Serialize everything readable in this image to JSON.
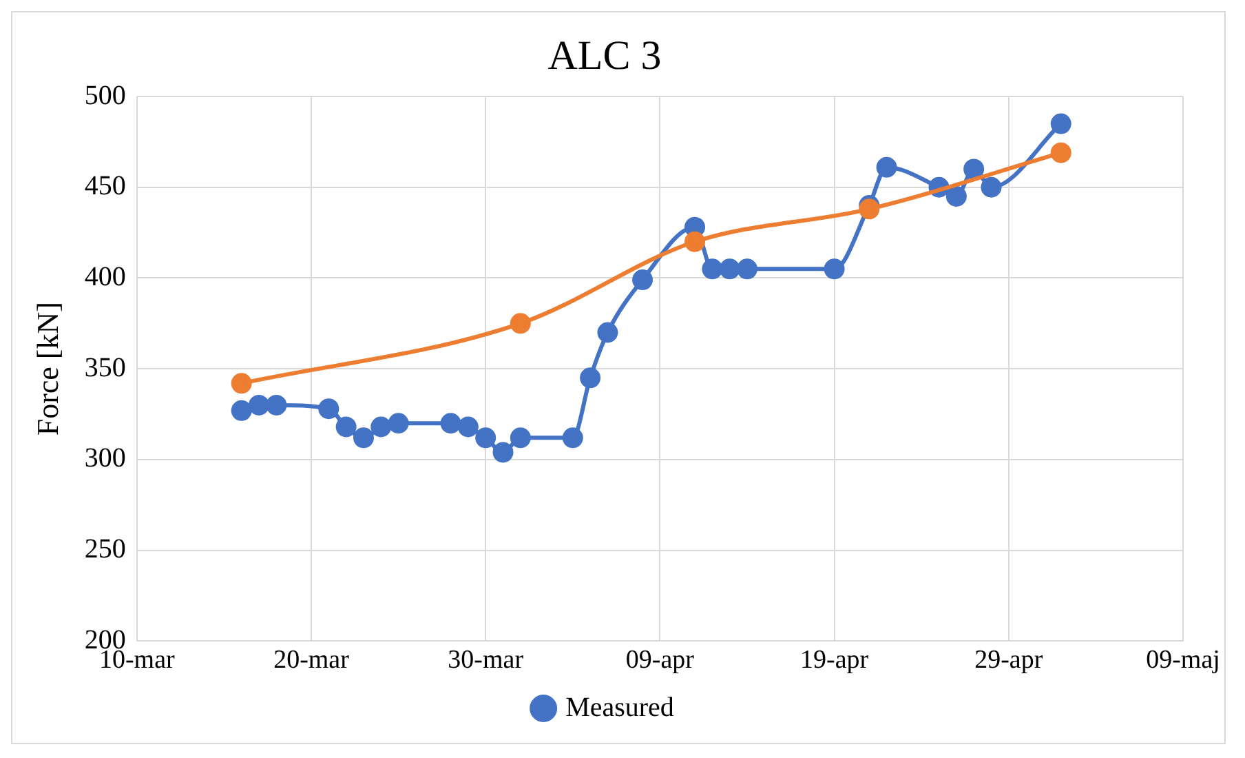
{
  "chart_data": {
    "type": "line",
    "title": "ALC 3",
    "ylabel": "Force [kN]",
    "xlim": [
      "--03-10",
      "--05-09"
    ],
    "xticks": [
      {
        "value": "--03-10",
        "label": "10-mar"
      },
      {
        "value": "--03-20",
        "label": "20-mar"
      },
      {
        "value": "--03-30",
        "label": "30-mar"
      },
      {
        "value": "--04-09",
        "label": "09-apr"
      },
      {
        "value": "--04-19",
        "label": "19-apr"
      },
      {
        "value": "--04-29",
        "label": "29-apr"
      },
      {
        "value": "--05-09",
        "label": "09-maj"
      }
    ],
    "ylim": [
      200,
      500
    ],
    "yticks": [
      200,
      250,
      300,
      350,
      400,
      450,
      500
    ],
    "grid": true,
    "legend": "bottom",
    "marker": "circle",
    "line_style": "solid",
    "series": [
      {
        "name": "Measured",
        "color": "#4472c4",
        "x": [
          "--03-16",
          "--03-17",
          "--03-18",
          "--03-21",
          "--03-22",
          "--03-23",
          "--03-24",
          "--03-25",
          "--03-28",
          "--03-29",
          "--03-30",
          "--03-31",
          "--04-01",
          "--04-04",
          "--04-05",
          "--04-06",
          "--04-08",
          "--04-11",
          "--04-12",
          "--04-13",
          "--04-14",
          "--04-19",
          "--04-21",
          "--04-22",
          "--04-25",
          "--04-26",
          "--04-27",
          "--04-28",
          "--05-02"
        ],
        "values": [
          327,
          330,
          330,
          328,
          318,
          312,
          318,
          320,
          320,
          318,
          312,
          304,
          312,
          312,
          345,
          370,
          399,
          428,
          405,
          405,
          405,
          405,
          440,
          461,
          450,
          445,
          460,
          450,
          485
        ]
      },
      {
        "color": "#ed7d31",
        "x": [
          "--03-16",
          "--04-01",
          "--04-11",
          "--04-21",
          "--05-02"
        ],
        "values": [
          342,
          375,
          420,
          438,
          469
        ]
      }
    ]
  }
}
